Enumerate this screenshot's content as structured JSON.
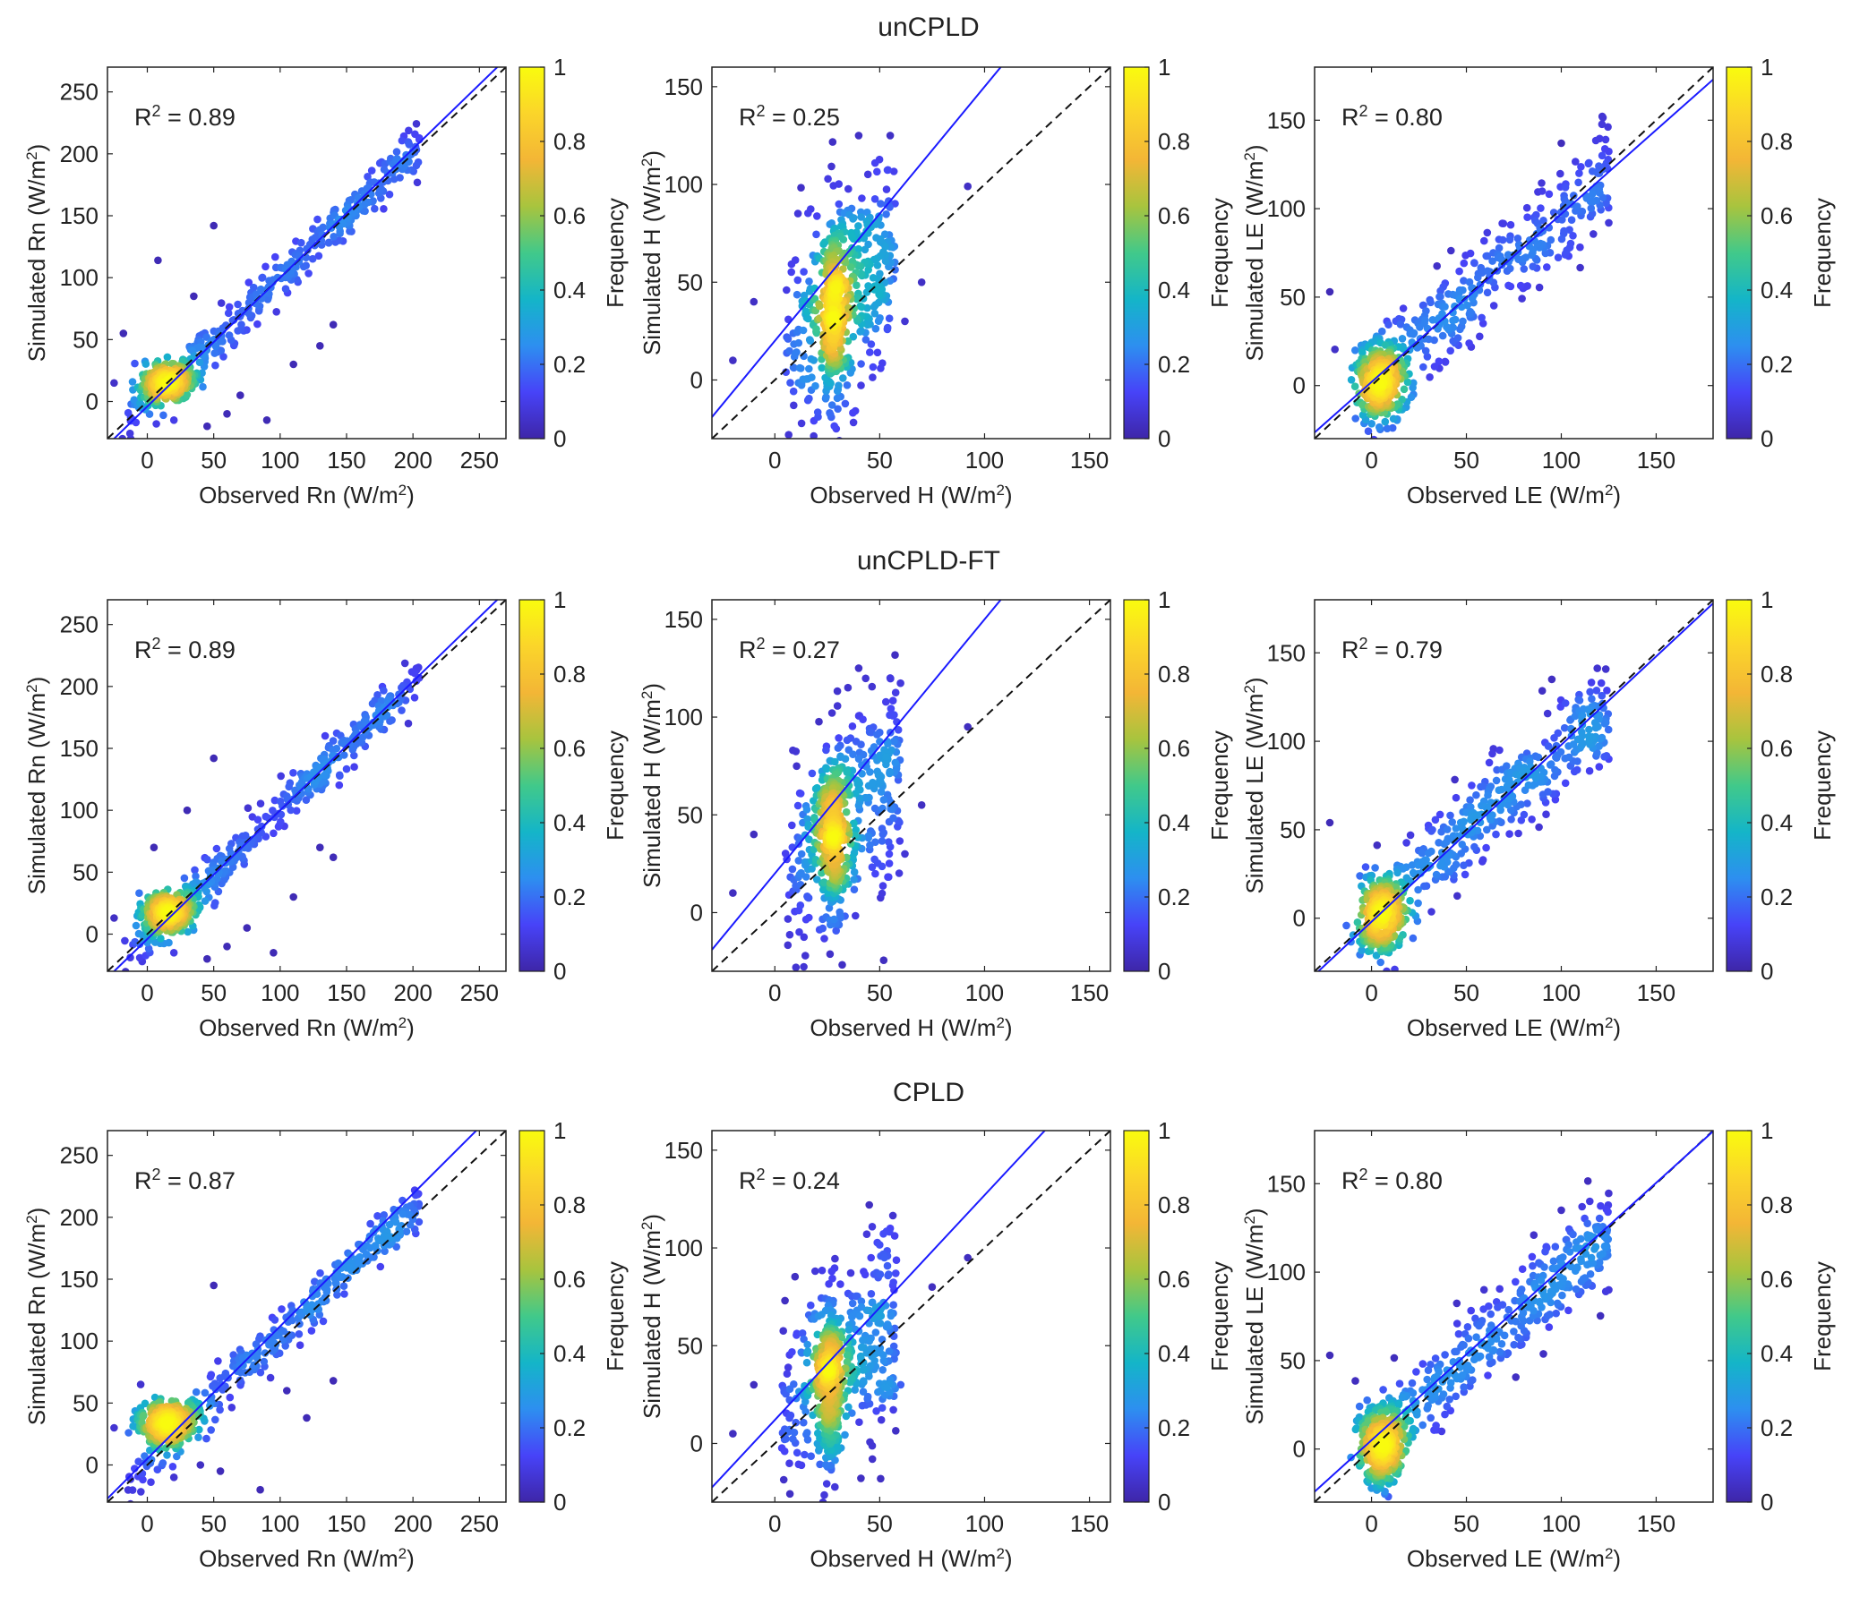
{
  "colormap": [
    "#3e26a8",
    "#4743f8",
    "#2d8ff0",
    "#14b5c8",
    "#41c98a",
    "#a8c43e",
    "#f3b636",
    "#fbd52a",
    "#f9fb0e"
  ],
  "rows": [
    {
      "title": "unCPLD",
      "panels": [
        {
          "chart_data": {
            "type": "scatter",
            "variable": "Rn",
            "xlabel": "Observed Rn (W/m²)",
            "ylabel": "Simulated Rn (W/m²)",
            "xlim": [
              -30,
              270
            ],
            "ylim": [
              -30,
              270
            ],
            "xticks": [
              0,
              50,
              100,
              150,
              200,
              250
            ],
            "yticks": [
              0,
              50,
              100,
              150,
              200,
              250
            ],
            "r2": "R² = 0.89",
            "fit_line": {
              "slope": 1.04,
              "intercept": -4
            },
            "one_to_one": true,
            "colorbar": {
              "label": "Frequency",
              "range": [
                0,
                1
              ],
              "ticks": [
                0,
                0.2,
                0.4,
                0.6,
                0.8,
                1
              ]
            },
            "cloud": {
              "n": 650,
              "xmin": -20,
              "xmax": 205,
              "slope": 1.03,
              "intercept": -3,
              "noise": 9,
              "dense_center": [
                15,
                15
              ],
              "outliers": [
                [
                  8,
                  114
                ],
                [
                  50,
                  142
                ],
                [
                  -18,
                  55
                ],
                [
                  -25,
                  15
                ],
                [
                  20,
                  -15
                ],
                [
                  45,
                  -20
                ],
                [
                  60,
                  -10
                ],
                [
                  70,
                  5
                ],
                [
                  90,
                  -15
                ],
                [
                  130,
                  45
                ],
                [
                  140,
                  62
                ],
                [
                  110,
                  30
                ],
                [
                  35,
                  85
                ]
              ]
            }
          }
        },
        {
          "chart_data": {
            "type": "scatter",
            "variable": "H",
            "xlabel": "Observed H (W/m²)",
            "ylabel": "Simulated H (W/m²)",
            "xlim": [
              -30,
              160
            ],
            "ylim": [
              -30,
              160
            ],
            "xticks": [
              0,
              50,
              100,
              150
            ],
            "yticks": [
              0,
              50,
              100,
              150
            ],
            "r2": "R² = 0.25",
            "fit_line": {
              "slope": 1.3,
              "intercept": 20
            },
            "one_to_one": true,
            "colorbar": {
              "label": "Frequency",
              "range": [
                0,
                1
              ],
              "ticks": [
                0,
                0.2,
                0.4,
                0.6,
                0.8,
                1
              ]
            },
            "cloud": {
              "n": 650,
              "xmin": 5,
              "xmax": 58,
              "slope": 1.0,
              "intercept": 12,
              "noise": 26,
              "dense_center": [
                28,
                35
              ],
              "outliers": [
                [
                  92,
                  99
                ],
                [
                  70,
                  50
                ],
                [
                  -10,
                  40
                ],
                [
                  -20,
                  10
                ],
                [
                  62,
                  30
                ],
                [
                  55,
                  125
                ],
                [
                  40,
                  125
                ]
              ]
            }
          }
        },
        {
          "chart_data": {
            "type": "scatter",
            "variable": "LE",
            "xlabel": "Observed LE (W/m²)",
            "ylabel": "Simulated LE (W/m²)",
            "xlim": [
              -30,
              180
            ],
            "ylim": [
              -30,
              180
            ],
            "xticks": [
              0,
              50,
              100,
              150
            ],
            "yticks": [
              0,
              50,
              100,
              150
            ],
            "r2": "R² = 0.80",
            "fit_line": {
              "slope": 0.95,
              "intercept": 2
            },
            "one_to_one": true,
            "colorbar": {
              "label": "Frequency",
              "range": [
                0,
                1
              ],
              "ticks": [
                0,
                0.2,
                0.4,
                0.6,
                0.8,
                1
              ]
            },
            "cloud": {
              "n": 700,
              "xmin": -5,
              "xmax": 125,
              "slope": 0.92,
              "intercept": 4,
              "noise": 14,
              "dense_center": [
                5,
                2
              ],
              "outliers": [
                [
                  -22,
                  53
                ],
                [
                  120,
                  120
                ],
                [
                  100,
                  137
                ],
                [
                  125,
                  92
                ]
              ]
            }
          }
        }
      ]
    },
    {
      "title": "unCPLD-FT",
      "panels": [
        {
          "chart_data": {
            "type": "scatter",
            "variable": "Rn",
            "xlabel": "Observed Rn (W/m²)",
            "ylabel": "Simulated Rn (W/m²)",
            "xlim": [
              -30,
              270
            ],
            "ylim": [
              -30,
              270
            ],
            "xticks": [
              0,
              50,
              100,
              150,
              200,
              250
            ],
            "yticks": [
              0,
              50,
              100,
              150,
              200,
              250
            ],
            "r2": "R² = 0.89",
            "fit_line": {
              "slope": 1.04,
              "intercept": -4
            },
            "one_to_one": true,
            "colorbar": {
              "label": "Frequency",
              "range": [
                0,
                1
              ],
              "ticks": [
                0,
                0.2,
                0.4,
                0.6,
                0.8,
                1
              ]
            },
            "cloud": {
              "n": 650,
              "xmin": -20,
              "xmax": 205,
              "slope": 1.03,
              "intercept": -3,
              "noise": 9,
              "dense_center": [
                15,
                18
              ],
              "outliers": [
                [
                  30,
                  100
                ],
                [
                  50,
                  142
                ],
                [
                  -25,
                  13
                ],
                [
                  20,
                  -15
                ],
                [
                  45,
                  -20
                ],
                [
                  60,
                  -10
                ],
                [
                  75,
                  5
                ],
                [
                  95,
                  -15
                ],
                [
                  140,
                  62
                ],
                [
                  130,
                  70
                ],
                [
                  110,
                  30
                ],
                [
                  5,
                  70
                ]
              ]
            }
          }
        },
        {
          "chart_data": {
            "type": "scatter",
            "variable": "H",
            "xlabel": "Observed H (W/m²)",
            "ylabel": "Simulated H (W/m²)",
            "xlim": [
              -30,
              160
            ],
            "ylim": [
              -30,
              160
            ],
            "xticks": [
              0,
              50,
              100,
              150
            ],
            "yticks": [
              0,
              50,
              100,
              150
            ],
            "r2": "R² = 0.27",
            "fit_line": {
              "slope": 1.3,
              "intercept": 20
            },
            "one_to_one": true,
            "colorbar": {
              "label": "Frequency",
              "range": [
                0,
                1
              ],
              "ticks": [
                0,
                0.2,
                0.4,
                0.6,
                0.8,
                1
              ]
            },
            "cloud": {
              "n": 650,
              "xmin": 5,
              "xmax": 60,
              "slope": 1.0,
              "intercept": 14,
              "noise": 26,
              "dense_center": [
                28,
                40
              ],
              "outliers": [
                [
                  92,
                  95
                ],
                [
                  70,
                  55
                ],
                [
                  -10,
                  40
                ],
                [
                  -20,
                  10
                ],
                [
                  62,
                  30
                ],
                [
                  55,
                  120
                ],
                [
                  40,
                  125
                ]
              ]
            }
          }
        },
        {
          "chart_data": {
            "type": "scatter",
            "variable": "LE",
            "xlabel": "Observed LE (W/m²)",
            "ylabel": "Simulated LE (W/m²)",
            "xlim": [
              -30,
              180
            ],
            "ylim": [
              -30,
              180
            ],
            "xticks": [
              0,
              50,
              100,
              150
            ],
            "yticks": [
              0,
              50,
              100,
              150
            ],
            "r2": "R² = 0.79",
            "fit_line": {
              "slope": 1.0,
              "intercept": -2
            },
            "one_to_one": true,
            "colorbar": {
              "label": "Frequency",
              "range": [
                0,
                1
              ],
              "ticks": [
                0,
                0.2,
                0.4,
                0.6,
                0.8,
                1
              ]
            },
            "cloud": {
              "n": 700,
              "xmin": -5,
              "xmax": 125,
              "slope": 0.93,
              "intercept": 3,
              "noise": 14,
              "dense_center": [
                5,
                2
              ],
              "outliers": [
                [
                  -22,
                  54
                ],
                [
                  120,
                  115
                ],
                [
                  95,
                  135
                ],
                [
                  125,
                  90
                ]
              ]
            }
          }
        }
      ]
    },
    {
      "title": "CPLD",
      "panels": [
        {
          "chart_data": {
            "type": "scatter",
            "variable": "Rn",
            "xlabel": "Observed Rn (W/m²)",
            "ylabel": "Simulated Rn (W/m²)",
            "xlim": [
              -30,
              270
            ],
            "ylim": [
              -30,
              270
            ],
            "xticks": [
              0,
              50,
              100,
              150,
              200,
              250
            ],
            "yticks": [
              0,
              50,
              100,
              150,
              200,
              250
            ],
            "r2": "R² = 0.87",
            "fit_line": {
              "slope": 1.07,
              "intercept": 5
            },
            "one_to_one": true,
            "colorbar": {
              "label": "Frequency",
              "range": [
                0,
                1
              ],
              "ticks": [
                0,
                0.2,
                0.4,
                0.6,
                0.8,
                1
              ]
            },
            "cloud": {
              "n": 650,
              "xmin": -15,
              "xmax": 205,
              "slope": 1.02,
              "intercept": 3,
              "noise": 10,
              "dense_center": [
                15,
                35
              ],
              "outliers": [
                [
                  50,
                  145
                ],
                [
                  -25,
                  30
                ],
                [
                  -5,
                  65
                ],
                [
                  20,
                  -10
                ],
                [
                  40,
                  0
                ],
                [
                  55,
                  -5
                ],
                [
                  85,
                  -20
                ],
                [
                  120,
                  38
                ],
                [
                  140,
                  68
                ],
                [
                  105,
                  60
                ]
              ]
            }
          }
        },
        {
          "chart_data": {
            "type": "scatter",
            "variable": "H",
            "xlabel": "Observed H (W/m²)",
            "ylabel": "Simulated H (W/m²)",
            "xlim": [
              -30,
              160
            ],
            "ylim": [
              -30,
              160
            ],
            "xticks": [
              0,
              50,
              100,
              150
            ],
            "yticks": [
              0,
              50,
              100,
              150
            ],
            "r2": "R² = 0.24",
            "fit_line": {
              "slope": 1.15,
              "intercept": 12
            },
            "one_to_one": true,
            "colorbar": {
              "label": "Frequency",
              "range": [
                0,
                1
              ],
              "ticks": [
                0,
                0.2,
                0.4,
                0.6,
                0.8,
                1
              ]
            },
            "cloud": {
              "n": 650,
              "xmin": 3,
              "xmax": 58,
              "slope": 0.9,
              "intercept": 10,
              "noise": 24,
              "dense_center": [
                26,
                30
              ],
              "outliers": [
                [
                  92,
                  95
                ],
                [
                  75,
                  80
                ],
                [
                  -10,
                  30
                ],
                [
                  -20,
                  5
                ],
                [
                  60,
                  30
                ],
                [
                  45,
                  122
                ],
                [
                  55,
                  110
                ]
              ]
            }
          }
        },
        {
          "chart_data": {
            "type": "scatter",
            "variable": "LE",
            "xlabel": "Observed LE (W/m²)",
            "ylabel": "Simulated LE (W/m²)",
            "xlim": [
              -30,
              180
            ],
            "ylim": [
              -30,
              180
            ],
            "xticks": [
              0,
              50,
              100,
              150
            ],
            "yticks": [
              0,
              50,
              100,
              150
            ],
            "r2": "R² = 0.80",
            "fit_line": {
              "slope": 0.97,
              "intercept": 5
            },
            "one_to_one": true,
            "colorbar": {
              "label": "Frequency",
              "range": [
                0,
                1
              ],
              "ticks": [
                0,
                0.2,
                0.4,
                0.6,
                0.8,
                1
              ]
            },
            "cloud": {
              "n": 700,
              "xmin": -5,
              "xmax": 125,
              "slope": 0.93,
              "intercept": 5,
              "noise": 14,
              "dense_center": [
                5,
                2
              ],
              "outliers": [
                [
                  -22,
                  53
                ],
                [
                  115,
                  140
                ],
                [
                  100,
                  135
                ],
                [
                  125,
                  90
                ]
              ]
            }
          }
        }
      ]
    }
  ]
}
